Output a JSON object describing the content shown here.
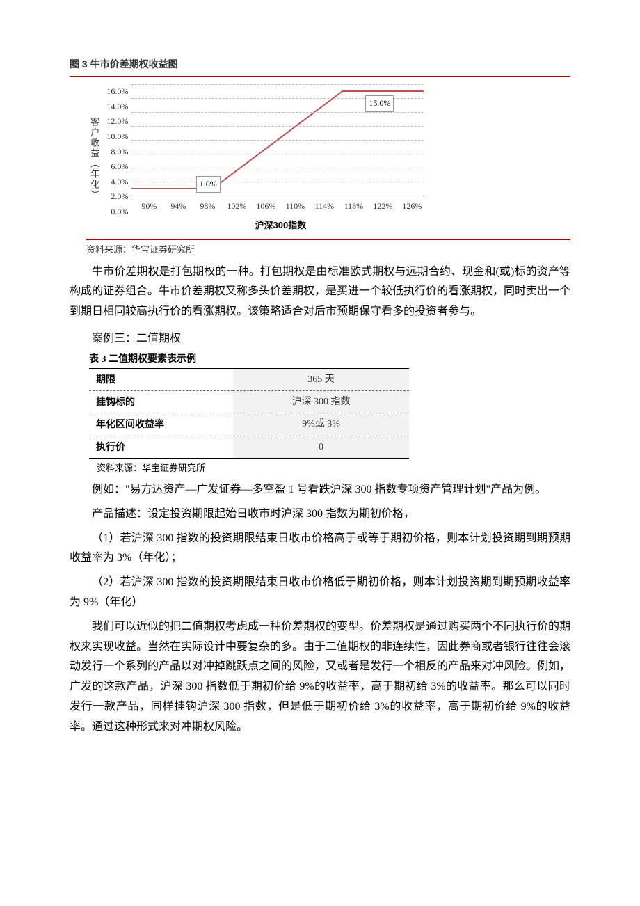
{
  "figure3": {
    "title": "图 3 牛市价差期权收益图",
    "y_axis_label": "客户收益（年化）",
    "x_axis_label": "沪深300指数",
    "type": "line",
    "y_ticks": [
      "16.0%",
      "14.0%",
      "12.0%",
      "10.0%",
      "8.0%",
      "6.0%",
      "4.0%",
      "2.0%",
      "0.0%"
    ],
    "x_ticks": [
      "90%",
      "94%",
      "98%",
      "102%",
      "106%",
      "110%",
      "114%",
      "118%",
      "122%",
      "126%"
    ],
    "line_color": "#c0504d",
    "line_width": 2,
    "grid_color": "#bbbbbb",
    "points_pct": [
      {
        "x": 0,
        "y": 1.0
      },
      {
        "x": 27.78,
        "y": 1.0
      },
      {
        "x": 72.22,
        "y": 15.0
      },
      {
        "x": 100,
        "y": 15.0
      }
    ],
    "y_max": 16.0,
    "labels": [
      {
        "text": "1.0%",
        "left_pct": 22,
        "y_val": 1.0,
        "offset_y": -18
      },
      {
        "text": "15.0%",
        "left_pct": 80,
        "y_val": 15.0,
        "offset_y": 6
      }
    ],
    "source": "资料来源：华宝证券研究所"
  },
  "para1": "牛市价差期权是打包期权的一种。打包期权是由标准欧式期权与远期合约、现金和(或)标的资产等构成的证券组合。牛市价差期权又称多头价差期权，是买进一个较低执行价的看涨期权，同时卖出一个到期日相同较高执行价的看涨期权。该策略适合对后市预期保守看多的投资者参与。",
  "case3_title": "案例三：二值期权",
  "table3": {
    "title": "表 3 二值期权要素表示例",
    "rows": [
      {
        "label": "期限",
        "value": "365 天"
      },
      {
        "label": "挂钩标的",
        "value": "沪深 300 指数"
      },
      {
        "label": "年化区间收益率",
        "value": "9%或 3%"
      },
      {
        "label": "执行价",
        "value": "0"
      }
    ],
    "source": "资料来源：华宝证券研究所"
  },
  "para2": "例如：\"易方达资产—广发证券—多空盈 1 号看跌沪深 300 指数专项资产管理计划\"产品为例。",
  "para3": "产品描述：设定投资期限起始日收市时沪深 300 指数为期初价格，",
  "para4": "（1）若沪深 300 指数的投资期限结束日收市价格高于或等于期初价格，则本计划投资期到期预期收益率为 3%（年化）；",
  "para5": "（2）若沪深 300 指数的投资期限结束日收市价格低于期初价格，则本计划投资期到期预期收益率为 9%（年化）",
  "para6": "我们可以近似的把二值期权考虑成一种价差期权的变型。价差期权是通过购买两个不同执行价的期权来实现收益。当然在实际设计中要复杂的多。由于二值期权的非连续性，因此券商或者银行往往会滚动发行一个系列的产品以对冲掉跳跃点之间的风险，又或者是发行一个相反的产品来对冲风险。例如，广发的这款产品，沪深 300 指数低于期初价给 9%的收益率，高于期初给 3%的收益率。那么可以同时发行一款产品，同样挂钩沪深 300 指数，但是低于期初价给 3%的收益率，高于期初价给 9%的收益率。通过这种形式来对冲期权风险。"
}
